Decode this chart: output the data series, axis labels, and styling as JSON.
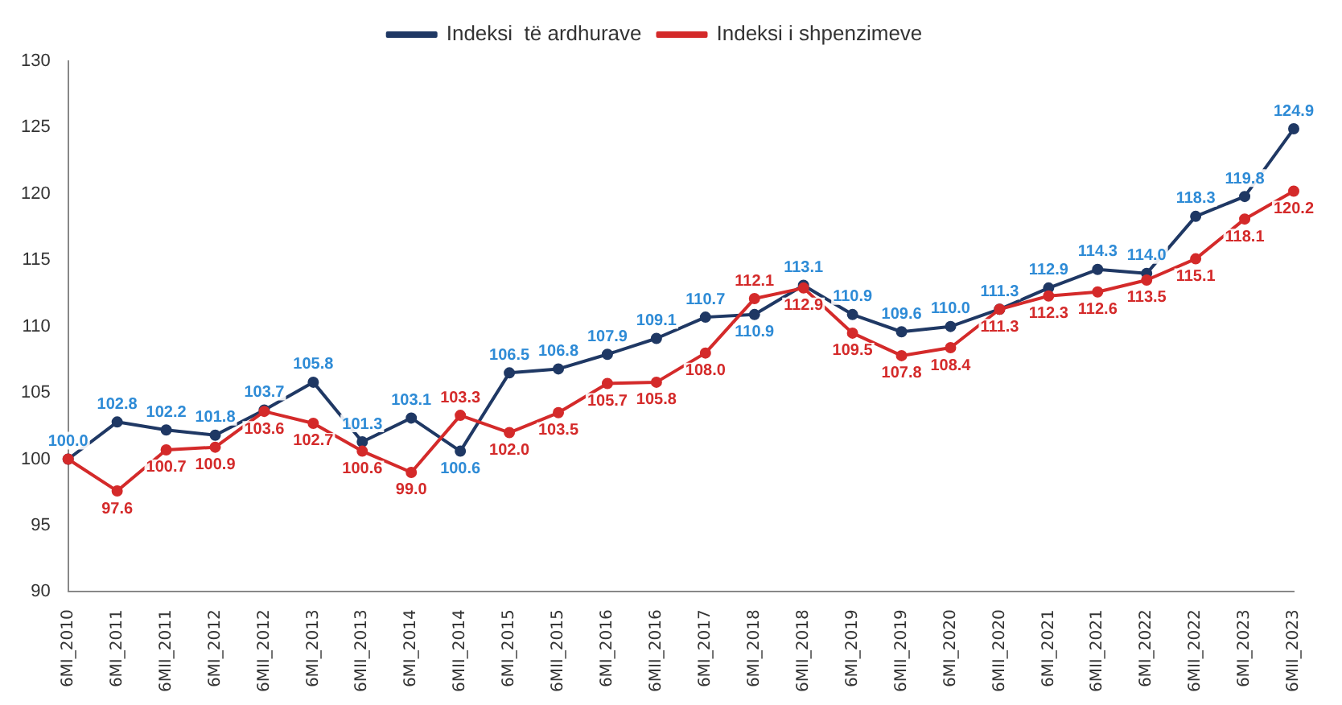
{
  "chart_data": {
    "type": "line",
    "categories": [
      "6MI_2010",
      "6MI_2011",
      "6MII_2011",
      "6MI_2012",
      "6MII_2012",
      "6MI_2013",
      "6MII_2013",
      "6MI_2014",
      "6MII_2014",
      "6MI_2015",
      "6MII_2015",
      "6MI_2016",
      "6MII_2016",
      "6MI_2017",
      "6MI_2018",
      "6MII_2018",
      "6MI_2019",
      "6MII_2019",
      "6MI_2020",
      "6MII_2020",
      "6MI_2021",
      "6MII_2021",
      "6MI_2022",
      "6MII_2022",
      "6MI_2023",
      "6MII_2023"
    ],
    "series": [
      {
        "name": "Indeksi  të ardhurave",
        "color": "#1f3864",
        "values": [
          100.0,
          102.8,
          102.2,
          101.8,
          103.7,
          105.8,
          101.3,
          103.1,
          100.6,
          106.5,
          106.8,
          107.9,
          109.1,
          110.7,
          110.9,
          113.1,
          110.9,
          109.6,
          110.0,
          111.3,
          112.9,
          114.3,
          114.0,
          118.3,
          119.8,
          124.9
        ],
        "value_labels": [
          "100.0",
          "102.8",
          "102.2",
          "101.8",
          "103.7",
          "105.8",
          "101.3",
          "103.1",
          "100.6",
          "106.5",
          "106.8",
          "107.9",
          "109.1",
          "110.7",
          "110.9",
          "113.1",
          "110.9",
          "109.6",
          "110.0",
          "111.3",
          "112.9",
          "114.3",
          "114.0",
          "118.3",
          "119.8",
          "124.9"
        ]
      },
      {
        "name": "Indeksi i shpenzimeve",
        "color": "#d42a2a",
        "values": [
          100.0,
          97.6,
          100.7,
          100.9,
          103.6,
          102.7,
          100.6,
          99.0,
          103.3,
          102.0,
          103.5,
          105.7,
          105.8,
          108.0,
          112.1,
          112.9,
          109.5,
          107.8,
          108.4,
          111.3,
          112.3,
          112.6,
          113.5,
          115.1,
          118.1,
          120.2
        ],
        "value_labels": [
          null,
          "97.6",
          "100.7",
          "100.9",
          "103.6",
          "102.7",
          "100.6",
          "99.0",
          "103.3",
          "102.0",
          "103.5",
          "105.7",
          "105.8",
          "108.0",
          "112.1",
          "112.9",
          "109.5",
          "107.8",
          "108.4",
          "111.3",
          "112.3",
          "112.6",
          "113.5",
          "115.1",
          "118.1",
          "120.2"
        ]
      }
    ],
    "ylim": [
      90,
      130
    ],
    "yticks": [
      90,
      95,
      100,
      105,
      110,
      115,
      120,
      125,
      130
    ],
    "grid": false,
    "legend": "top",
    "marker": "circle",
    "line_style": "solid"
  }
}
